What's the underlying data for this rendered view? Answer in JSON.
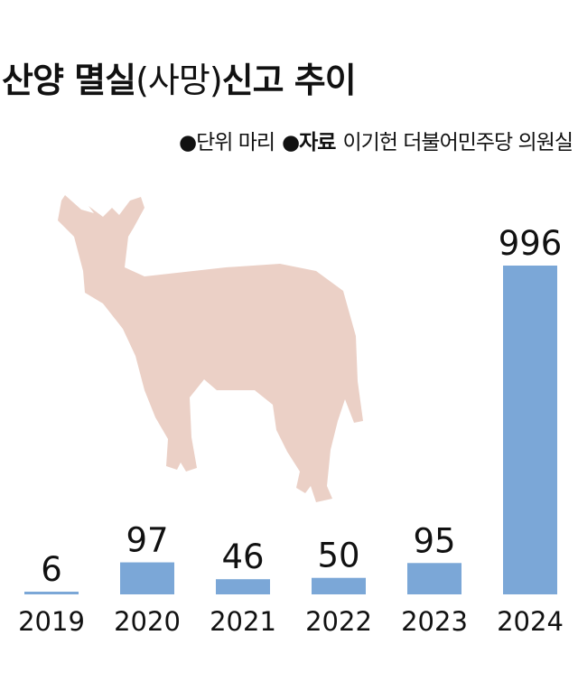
{
  "header": {
    "title_a": "산양 멸실",
    "title_b": "(사망)",
    "title_c": "신고 추이",
    "unit_bullet": "●",
    "unit_text": "단위  마리",
    "source_bullet": "●",
    "source_label": "자료",
    "source_text": "이기헌 더불어민주당 의원실"
  },
  "colors": {
    "bar": "#7ba7d7",
    "goat_silhouette": "#ebd0c6",
    "text": "#111111"
  },
  "chart_data": {
    "type": "bar",
    "title": "산양 멸실(사망)신고 추이",
    "categories": [
      "2019",
      "2020",
      "2021",
      "2022",
      "2023",
      "2024"
    ],
    "values": [
      6,
      97,
      46,
      50,
      95,
      996
    ],
    "value_labels": [
      "6",
      "97",
      "46",
      "50",
      "95",
      "996"
    ],
    "xlabel": "",
    "ylabel": "",
    "ylim": [
      0,
      1000
    ],
    "grid": false,
    "legend": "none"
  }
}
